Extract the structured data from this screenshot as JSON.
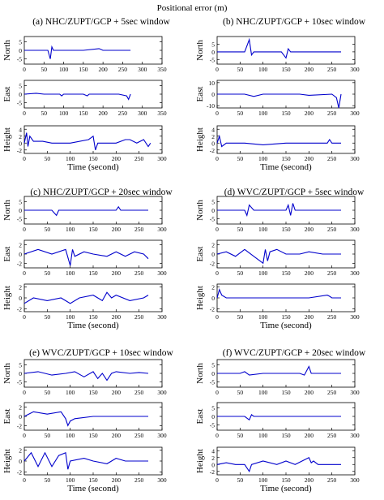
{
  "figure": {
    "title": "Positional error (m)",
    "xlabel": "Time (second)",
    "line_color": "#0000cc"
  },
  "chart_data": [
    {
      "type": "line",
      "panel": "a",
      "caption": "(a) NHC/ZUPT/GCP + 5sec window",
      "series": [
        {
          "name": "North",
          "yticks": [
            -5,
            0,
            5
          ],
          "ylim": [
            -8,
            8
          ],
          "xticks": [
            0,
            50,
            100,
            150,
            200,
            250,
            300,
            350
          ],
          "x": [
            0,
            40,
            60,
            66,
            70,
            74,
            100,
            150,
            190,
            200,
            210,
            250,
            270
          ],
          "y": [
            0,
            0,
            0,
            -5,
            2,
            0,
            0,
            0,
            1,
            0,
            0,
            0,
            0
          ]
        },
        {
          "name": "East",
          "yticks": [
            -5,
            0,
            5
          ],
          "ylim": [
            -8,
            8
          ],
          "xticks": [
            0,
            50,
            100,
            150,
            200,
            250,
            300,
            350
          ],
          "x": [
            0,
            30,
            50,
            90,
            95,
            100,
            150,
            160,
            165,
            200,
            240,
            260,
            265,
            270
          ],
          "y": [
            0,
            0.5,
            0,
            0,
            -1,
            0,
            0,
            -1,
            0,
            0,
            0,
            -1,
            -3,
            0
          ]
        },
        {
          "name": "Height",
          "yticks": [
            -2,
            0,
            2,
            4
          ],
          "ylim": [
            -3,
            5
          ],
          "xticks": [
            0,
            50,
            100,
            150,
            200,
            250,
            300
          ],
          "x": [
            0,
            5,
            8,
            12,
            20,
            40,
            60,
            100,
            140,
            150,
            155,
            160,
            200,
            220,
            230,
            245,
            260,
            270,
            275
          ],
          "y": [
            0,
            3,
            -1,
            2,
            0.5,
            0.5,
            0,
            0,
            1,
            2,
            -2,
            0,
            0,
            1,
            1,
            0,
            1,
            -1,
            0
          ]
        }
      ]
    },
    {
      "type": "line",
      "panel": "b",
      "caption": "(b) NHC/ZUPT/GCP + 10sec window",
      "series": [
        {
          "name": "North",
          "yticks": [
            -5,
            0,
            5
          ],
          "ylim": [
            -8,
            10
          ],
          "xticks": [
            0,
            50,
            100,
            150,
            200,
            250,
            300
          ],
          "x": [
            0,
            40,
            60,
            70,
            75,
            80,
            100,
            140,
            150,
            155,
            160,
            200,
            250,
            270
          ],
          "y": [
            0,
            0,
            0,
            8,
            -2,
            0,
            0,
            0,
            -4,
            2,
            0,
            0,
            0,
            0
          ]
        },
        {
          "name": "East",
          "yticks": [
            -10,
            0,
            10
          ],
          "ylim": [
            -12,
            12
          ],
          "xticks": [
            0,
            50,
            100,
            150,
            200,
            250,
            300
          ],
          "x": [
            0,
            40,
            60,
            80,
            100,
            150,
            180,
            200,
            250,
            260,
            265,
            270
          ],
          "y": [
            0,
            0,
            0,
            -2,
            0,
            0,
            0,
            -1,
            0,
            -3,
            -12,
            0
          ]
        },
        {
          "name": "Height",
          "yticks": [
            -2,
            0,
            2,
            4
          ],
          "ylim": [
            -3,
            5
          ],
          "xticks": [
            0,
            50,
            100,
            150,
            200,
            250,
            300
          ],
          "x": [
            0,
            5,
            10,
            20,
            60,
            100,
            150,
            200,
            240,
            245,
            250,
            270
          ],
          "y": [
            0,
            2,
            -1,
            0,
            0,
            -0.5,
            0,
            0,
            0,
            1,
            0,
            0
          ]
        }
      ]
    },
    {
      "type": "line",
      "panel": "c",
      "caption": "(c) NHC/ZUPT/GCP + 20sec window",
      "series": [
        {
          "name": "North",
          "yticks": [
            -5,
            0,
            5
          ],
          "ylim": [
            -8,
            8
          ],
          "xticks": [
            0,
            50,
            100,
            150,
            200,
            250,
            300
          ],
          "x": [
            0,
            50,
            60,
            70,
            75,
            80,
            150,
            200,
            205,
            210,
            270
          ],
          "y": [
            0,
            0,
            0,
            -3,
            0,
            0,
            0,
            0,
            2,
            0,
            0
          ]
        },
        {
          "name": "East",
          "yticks": [
            -2,
            0,
            2
          ],
          "ylim": [
            -3,
            3
          ],
          "xticks": [
            0,
            50,
            100,
            150,
            200,
            250,
            300
          ],
          "x": [
            0,
            30,
            60,
            90,
            100,
            105,
            110,
            130,
            150,
            180,
            200,
            220,
            240,
            260,
            270
          ],
          "y": [
            0,
            1,
            0,
            1,
            -2.5,
            1,
            -0.5,
            0.5,
            0,
            -0.5,
            0.5,
            -0.5,
            0.5,
            0,
            -1
          ]
        },
        {
          "name": "Height",
          "yticks": [
            -2,
            0,
            2
          ],
          "ylim": [
            -2.5,
            2.5
          ],
          "xticks": [
            0,
            50,
            100,
            150,
            200,
            250,
            300
          ],
          "x": [
            0,
            20,
            50,
            80,
            100,
            120,
            150,
            170,
            180,
            190,
            200,
            230,
            260,
            270
          ],
          "y": [
            -1,
            0,
            -0.5,
            0,
            -1,
            0,
            0.5,
            -0.5,
            1,
            0,
            0.5,
            -0.5,
            0,
            0.5
          ]
        }
      ]
    },
    {
      "type": "line",
      "panel": "d",
      "caption": "(d) WVC/ZUPT/GCP + 5sec window",
      "series": [
        {
          "name": "North",
          "yticks": [
            -5,
            0,
            5
          ],
          "ylim": [
            -8,
            8
          ],
          "xticks": [
            0,
            50,
            100,
            150,
            200,
            250,
            300
          ],
          "x": [
            0,
            40,
            60,
            65,
            70,
            80,
            100,
            150,
            155,
            160,
            165,
            170,
            200,
            240,
            250,
            270
          ],
          "y": [
            0,
            0,
            0,
            -3,
            3,
            0,
            0,
            0,
            3,
            -3,
            4,
            0,
            0,
            0,
            0,
            0
          ]
        },
        {
          "name": "East",
          "yticks": [
            -2,
            0,
            2
          ],
          "ylim": [
            -3,
            3
          ],
          "xticks": [
            0,
            50,
            100,
            150,
            200,
            250,
            300
          ],
          "x": [
            0,
            20,
            40,
            60,
            80,
            100,
            105,
            110,
            115,
            130,
            150,
            180,
            200,
            230,
            250,
            270
          ],
          "y": [
            0,
            0.5,
            -0.5,
            1,
            -0.5,
            -2,
            1,
            -1.5,
            0.5,
            1,
            0,
            0,
            0.5,
            0,
            0,
            0
          ]
        },
        {
          "name": "Height",
          "yticks": [
            -2,
            0,
            2
          ],
          "ylim": [
            -2.5,
            2.5
          ],
          "xticks": [
            0,
            50,
            100,
            150,
            200,
            250,
            300
          ],
          "x": [
            0,
            5,
            10,
            20,
            50,
            100,
            150,
            200,
            240,
            245,
            250,
            270
          ],
          "y": [
            0,
            1.5,
            0.5,
            0,
            0,
            0,
            0,
            0,
            0.5,
            0.3,
            0,
            0
          ]
        }
      ]
    },
    {
      "type": "line",
      "panel": "e",
      "caption": "(e) WVC/ZUPT/GCP + 10sec window",
      "series": [
        {
          "name": "North",
          "yticks": [
            -5,
            0,
            5
          ],
          "ylim": [
            -8,
            8
          ],
          "xticks": [
            0,
            50,
            100,
            150,
            200,
            250,
            300
          ],
          "x": [
            0,
            30,
            60,
            90,
            110,
            130,
            150,
            160,
            170,
            180,
            190,
            200,
            230,
            250,
            270
          ],
          "y": [
            0,
            1,
            -1,
            0,
            1,
            -2,
            1,
            -3,
            0,
            -4,
            0,
            1,
            0,
            0.5,
            0
          ]
        },
        {
          "name": "East",
          "yticks": [
            -2,
            0,
            2
          ],
          "ylim": [
            -3,
            3
          ],
          "xticks": [
            0,
            50,
            100,
            150,
            200,
            250,
            300
          ],
          "x": [
            0,
            20,
            50,
            80,
            90,
            95,
            100,
            110,
            150,
            200,
            250,
            270
          ],
          "y": [
            0,
            1,
            0.5,
            1,
            -0.5,
            -2,
            -1,
            -0.5,
            0,
            0,
            0,
            0
          ]
        },
        {
          "name": "Height",
          "yticks": [
            -2,
            0,
            2
          ],
          "ylim": [
            -2.5,
            2.5
          ],
          "xticks": [
            0,
            50,
            100,
            150,
            200,
            250,
            300
          ],
          "x": [
            0,
            15,
            30,
            45,
            60,
            75,
            90,
            95,
            100,
            130,
            150,
            180,
            200,
            220,
            250,
            270
          ],
          "y": [
            0,
            1.5,
            -1,
            1.5,
            -1,
            1,
            1.5,
            -1.5,
            0,
            0.5,
            0,
            -0.5,
            0.5,
            0,
            0,
            0
          ]
        }
      ]
    },
    {
      "type": "line",
      "panel": "f",
      "caption": "(f) WVC/ZUPT/GCP + 20sec window",
      "series": [
        {
          "name": "North",
          "yticks": [
            -5,
            0,
            5
          ],
          "ylim": [
            -8,
            8
          ],
          "xticks": [
            0,
            50,
            100,
            150,
            200,
            250,
            300
          ],
          "x": [
            0,
            30,
            50,
            60,
            70,
            100,
            150,
            180,
            190,
            200,
            205,
            210,
            250,
            270
          ],
          "y": [
            0,
            0,
            0,
            1,
            -1,
            0,
            0,
            0,
            -1,
            4,
            0,
            0,
            0,
            0
          ]
        },
        {
          "name": "East",
          "yticks": [
            -5,
            0,
            5
          ],
          "ylim": [
            -8,
            8
          ],
          "xticks": [
            0,
            50,
            100,
            150,
            200,
            250,
            300
          ],
          "x": [
            0,
            40,
            60,
            70,
            75,
            80,
            100,
            150,
            200,
            250,
            270
          ],
          "y": [
            0,
            0,
            0,
            -2,
            1,
            0,
            0,
            0,
            0,
            0,
            0
          ]
        },
        {
          "name": "Height",
          "yticks": [
            -2,
            0,
            2,
            4
          ],
          "ylim": [
            -3,
            5
          ],
          "xticks": [
            0,
            50,
            100,
            150,
            200,
            250,
            300
          ],
          "x": [
            0,
            20,
            40,
            60,
            70,
            75,
            100,
            130,
            150,
            170,
            200,
            205,
            210,
            220,
            240,
            270
          ],
          "y": [
            0,
            0.5,
            0,
            0,
            -2,
            0,
            1,
            0,
            1,
            0,
            2,
            0.5,
            1,
            0,
            0,
            0
          ]
        }
      ]
    }
  ]
}
